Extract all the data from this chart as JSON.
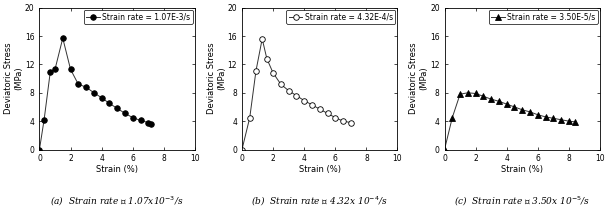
{
  "plots": [
    {
      "legend_label": "Strain rate = 1.07E-3/s",
      "marker": "o",
      "marker_fill": "black",
      "markersize": 4,
      "strain": [
        0,
        0.3,
        0.7,
        1.0,
        1.5,
        2.0,
        2.5,
        3.0,
        3.5,
        4.0,
        4.5,
        5.0,
        5.5,
        6.0,
        6.5,
        7.0,
        7.2
      ],
      "stress": [
        0,
        4.2,
        11.0,
        11.3,
        15.7,
        11.3,
        9.2,
        8.8,
        8.0,
        7.3,
        6.5,
        5.8,
        5.1,
        4.5,
        4.1,
        3.8,
        3.6
      ],
      "xlabel": "Strain (%)",
      "ylabel": "Deviatoric Stress\n(MPa)",
      "xlim": [
        0,
        10
      ],
      "ylim": [
        0,
        20
      ],
      "xticks": [
        0,
        2,
        4,
        6,
        8,
        10
      ],
      "yticks": [
        0,
        4,
        8,
        12,
        16,
        20
      ],
      "caption": "(a)  Strain rate ： 1.07x10$^{-3}$/s"
    },
    {
      "legend_label": "Strain rate = 4.32E-4/s",
      "marker": "o",
      "marker_fill": "white",
      "markersize": 4,
      "strain": [
        0,
        0.5,
        0.9,
        1.3,
        1.6,
        2.0,
        2.5,
        3.0,
        3.5,
        4.0,
        4.5,
        5.0,
        5.5,
        6.0,
        6.5,
        7.0
      ],
      "stress": [
        0,
        4.5,
        11.1,
        15.6,
        12.8,
        10.8,
        9.2,
        8.3,
        7.6,
        6.9,
        6.3,
        5.7,
        5.1,
        4.5,
        4.0,
        3.8
      ],
      "xlabel": "Strain (%)",
      "ylabel": "Deviatoric Stress\n(MPa)",
      "xlim": [
        0,
        10
      ],
      "ylim": [
        0,
        20
      ],
      "xticks": [
        0,
        2,
        4,
        6,
        8,
        10
      ],
      "yticks": [
        0,
        4,
        8,
        12,
        16,
        20
      ],
      "caption": "(b)  Strain rate ： 4.32x 10$^{-4}$/s"
    },
    {
      "legend_label": "Strain rate = 3.50E-5/s",
      "marker": "^",
      "marker_fill": "black",
      "markersize": 4,
      "strain": [
        0,
        0.5,
        1.0,
        1.5,
        2.0,
        2.5,
        3.0,
        3.5,
        4.0,
        4.5,
        5.0,
        5.5,
        6.0,
        6.5,
        7.0,
        7.5,
        8.0,
        8.4
      ],
      "stress": [
        0,
        4.5,
        7.8,
        8.0,
        7.9,
        7.5,
        7.1,
        6.8,
        6.4,
        6.0,
        5.6,
        5.3,
        4.9,
        4.6,
        4.4,
        4.2,
        4.0,
        3.9
      ],
      "xlabel": "Strain (%)",
      "ylabel": "Deviatoric Stress\n(MPa)",
      "xlim": [
        0,
        10
      ],
      "ylim": [
        0,
        20
      ],
      "xticks": [
        0,
        2,
        4,
        6,
        8,
        10
      ],
      "yticks": [
        0,
        4,
        8,
        12,
        16,
        20
      ],
      "caption": "(c)  Strain rate ： 3.50x 10$^{-5}$/s"
    }
  ],
  "fig_width": 6.09,
  "fig_height": 2.17,
  "dpi": 100,
  "bg_color": "#ffffff",
  "line_color": "#333333",
  "caption_fontsize": 6.5,
  "label_fontsize": 6,
  "tick_fontsize": 5.5,
  "legend_fontsize": 5.5
}
